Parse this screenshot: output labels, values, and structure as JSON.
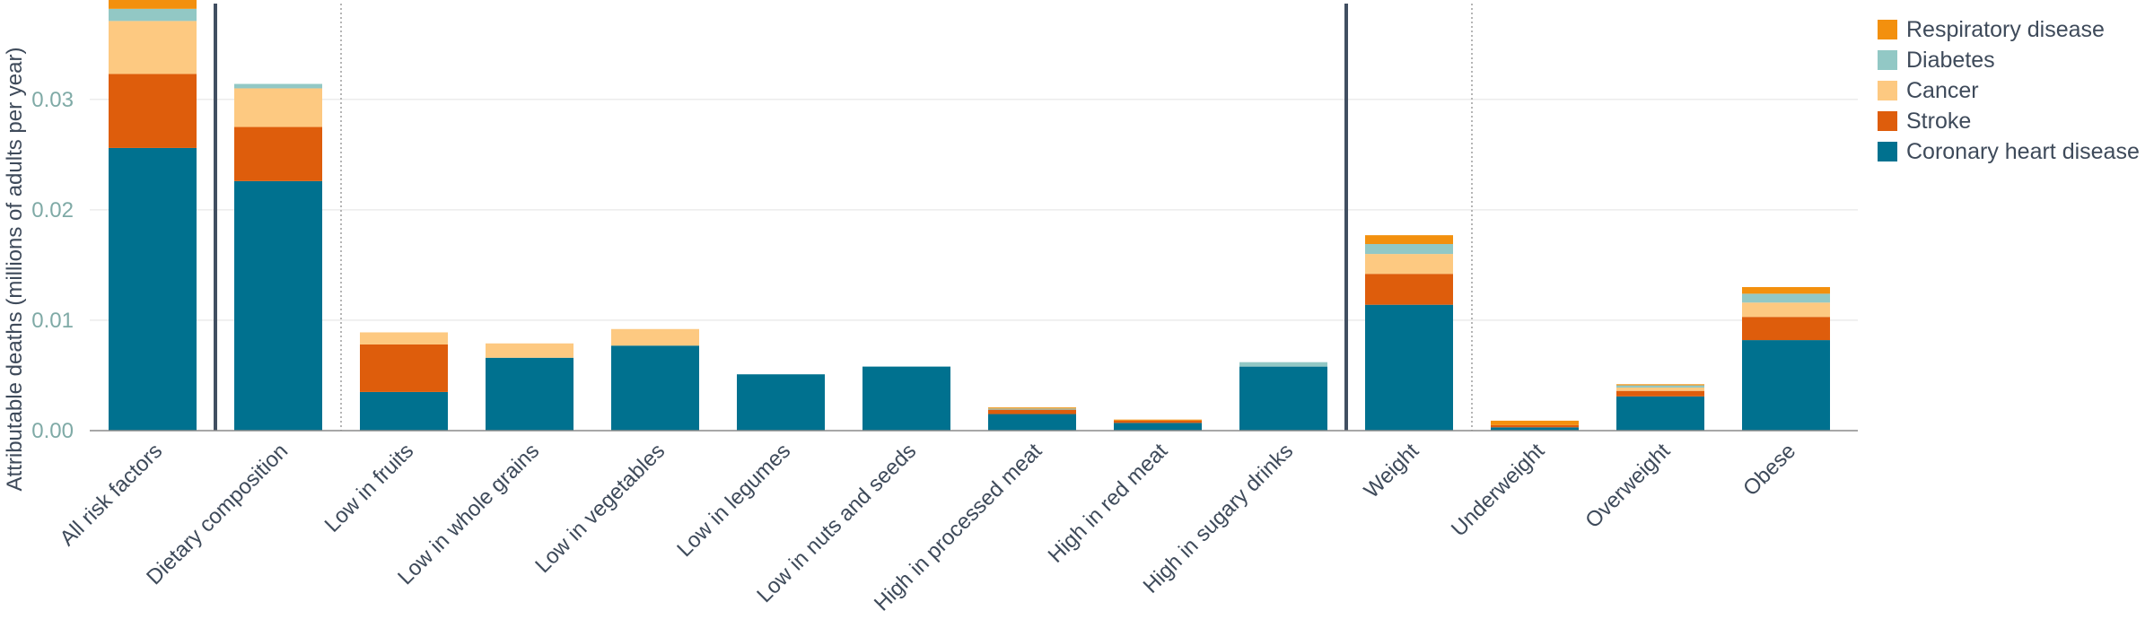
{
  "chart_data": {
    "type": "bar",
    "stacked": true,
    "ylabel": "Attributable deaths (millions of adults per year)",
    "xlabel": "",
    "ylim": [
      0,
      0.039
    ],
    "yticks": [
      0,
      0.01,
      0.02,
      0.03
    ],
    "ytick_labels": [
      "0.00",
      "0.01",
      "0.02",
      "0.03"
    ],
    "grid": true,
    "legend_position": "top-right",
    "categories": [
      "All risk factors",
      "Dietary composition",
      "Low in fruits",
      "Low in whole grains",
      "Low in vegetables",
      "Low in legumes",
      "Low in nuts and seeds",
      "High in processed meat",
      "High in red meat",
      "High in sugary drinks",
      "Weight",
      "Underweight",
      "Overweight",
      "Obese"
    ],
    "series": [
      {
        "name": "Coronary heart disease",
        "color": "#00718f",
        "values": [
          0.0256,
          0.0226,
          0.0035,
          0.0066,
          0.0077,
          0.0051,
          0.0058,
          0.0015,
          0.0007,
          0.0058,
          0.0114,
          0.0003,
          0.0031,
          0.0082
        ]
      },
      {
        "name": "Stroke",
        "color": "#de5d0c",
        "values": [
          0.0067,
          0.0049,
          0.0043,
          0.0,
          0.0,
          0.0,
          0.0,
          0.0004,
          0.0002,
          0.0,
          0.0028,
          0.0002,
          0.0005,
          0.0021
        ]
      },
      {
        "name": "Cancer",
        "color": "#fdc981",
        "values": [
          0.0048,
          0.0035,
          0.0011,
          0.0013,
          0.0015,
          0.0,
          0.0,
          0.0,
          0.0,
          0.0,
          0.0018,
          0.0,
          0.0003,
          0.0013
        ]
      },
      {
        "name": "Diabetes",
        "color": "#92c8c5",
        "values": [
          0.0011,
          0.0004,
          0.0,
          0.0,
          0.0,
          0.0,
          0.0,
          0.0001,
          0.0,
          0.0004,
          0.0009,
          0.0,
          0.0002,
          0.0008
        ]
      },
      {
        "name": "Respiratory disease",
        "color": "#f3900e",
        "values": [
          0.0009,
          0.0,
          0.0,
          0.0,
          0.0,
          0.0,
          0.0,
          0.0001,
          0.0001,
          0.0,
          0.0008,
          0.0004,
          0.0001,
          0.0006
        ]
      }
    ],
    "legend_order": [
      "Respiratory disease",
      "Diabetes",
      "Cancer",
      "Stroke",
      "Coronary heart disease"
    ]
  },
  "colors": {
    "axis_text": "#3e4a5a",
    "tick_text": "#7faaa6",
    "solid_separator": "#414f61",
    "dotted_separator": "#b5b5b5",
    "grid": "#ececec"
  }
}
